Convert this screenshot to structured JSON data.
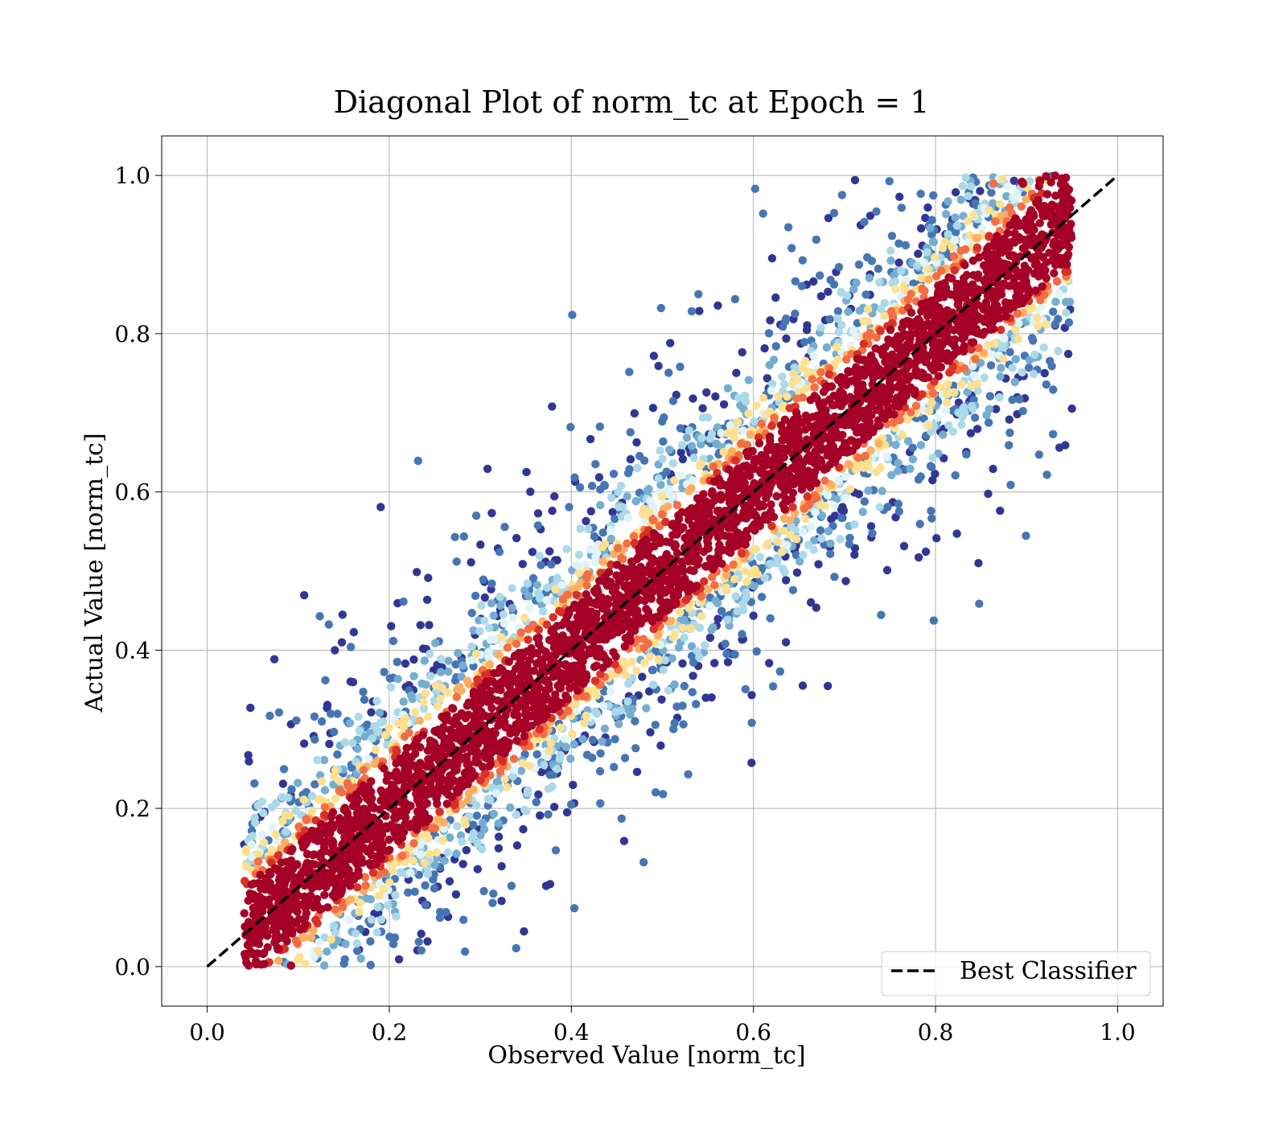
{
  "chart_data": {
    "type": "scatter",
    "title": "Diagonal Plot of norm_tc at Epoch = 1",
    "xlabel": "Observed Value [norm_tc]",
    "ylabel": "Actual Value [norm_tc]",
    "xlim": [
      -0.05,
      1.05
    ],
    "ylim": [
      -0.05,
      1.05
    ],
    "xticks": [
      0.0,
      0.2,
      0.4,
      0.6,
      0.8,
      1.0
    ],
    "xtick_labels": [
      "0.0",
      "0.2",
      "0.4",
      "0.6",
      "0.8",
      "1.0"
    ],
    "yticks": [
      0.0,
      0.2,
      0.4,
      0.6,
      0.8,
      1.0
    ],
    "ytick_labels": [
      "0.0",
      "0.2",
      "0.4",
      "0.6",
      "0.8",
      "1.0"
    ],
    "grid": true,
    "legend": {
      "position": "lower-right",
      "entries": [
        {
          "label": "Best Classifier",
          "style": "dashed",
          "color": "#000000"
        }
      ]
    },
    "reference_line": {
      "label": "Best Classifier",
      "x": [
        0.0,
        1.0
      ],
      "y": [
        0.0,
        1.0
      ],
      "style": "dashed",
      "color": "#000000"
    },
    "point_cloud": {
      "x_range": [
        0.04,
        0.95
      ],
      "y_range": [
        0.0,
        1.0
      ],
      "core_band_halfwidth": 0.07,
      "colormap": [
        "#a50026",
        "#d73027",
        "#f46d43",
        "#fdae61",
        "#fee090",
        "#e0f3f8",
        "#abd9e9",
        "#74add1",
        "#4575b4",
        "#313695"
      ]
    }
  }
}
